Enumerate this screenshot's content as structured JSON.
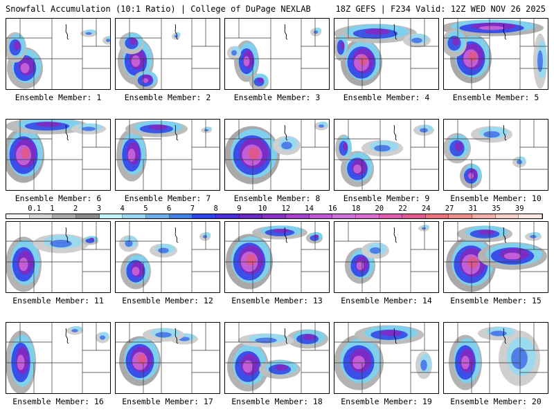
{
  "header": {
    "title_left": "Snowfall Accumulation (10:1 Ratio) | College of DuPage NEXLAB",
    "title_right": "18Z GEFS | F234 Valid: 12Z WED NOV 26 2025"
  },
  "colorbar": {
    "labels": [
      "0.1",
      "1",
      "2",
      "3",
      "4",
      "5",
      "6",
      "7",
      "8",
      "9",
      "10",
      "12",
      "14",
      "16",
      "18",
      "20",
      "22",
      "24",
      "27",
      "31",
      "35",
      "39"
    ],
    "colors": [
      "#f2f2f2",
      "#d2d2d2",
      "#a9a9a9",
      "#8a8a8a",
      "#bff4f7",
      "#96d5f0",
      "#6aaee8",
      "#3f7fe6",
      "#2b45e8",
      "#4a2fd6",
      "#6c28c4",
      "#8b2fc8",
      "#a63fd0",
      "#bd57d6",
      "#cf6fda",
      "#d86ad2",
      "#dd5aae",
      "#e1578e",
      "#e8707a",
      "#eb8e88",
      "#f0aea7",
      "#f6cec7",
      "#fae6e2"
    ]
  },
  "members": [
    {
      "label": "Ensemble Member: 1",
      "blobs": [
        [
          28,
          70,
          26,
          30,
          3
        ],
        [
          14,
          40,
          16,
          22,
          2
        ],
        [
          120,
          20,
          12,
          5,
          1
        ],
        [
          148,
          30,
          8,
          6,
          1
        ]
      ]
    },
    {
      "label": "Ensemble Member: 2",
      "blobs": [
        [
          30,
          60,
          26,
          34,
          3
        ],
        [
          44,
          88,
          18,
          14,
          3
        ],
        [
          24,
          34,
          18,
          16,
          2
        ],
        [
          88,
          24,
          6,
          5,
          1
        ]
      ]
    },
    {
      "label": "Ensemble Member: 3",
      "blobs": [
        [
          32,
          60,
          18,
          30,
          3
        ],
        [
          50,
          90,
          14,
          12,
          2
        ],
        [
          14,
          48,
          10,
          10,
          1
        ],
        [
          132,
          18,
          8,
          6,
          1
        ]
      ]
    },
    {
      "label": "Ensemble Member: 4",
      "blobs": [
        [
          40,
          62,
          30,
          34,
          4
        ],
        [
          60,
          20,
          60,
          14,
          2
        ],
        [
          120,
          30,
          20,
          10,
          1
        ],
        [
          10,
          40,
          10,
          20,
          2
        ]
      ]
    },
    {
      "label": "Ensemble Member: 5",
      "blobs": [
        [
          40,
          56,
          30,
          36,
          4
        ],
        [
          70,
          12,
          75,
          12,
          3
        ],
        [
          16,
          34,
          18,
          20,
          2
        ],
        [
          140,
          60,
          10,
          40,
          1
        ]
      ]
    },
    {
      "label": "Ensemble Member: 6",
      "blobs": [
        [
          26,
          50,
          30,
          40,
          4
        ],
        [
          60,
          8,
          60,
          12,
          2
        ],
        [
          120,
          12,
          25,
          8,
          1
        ]
      ]
    },
    {
      "label": "Ensemble Member: 7",
      "blobs": [
        [
          24,
          50,
          22,
          38,
          3
        ],
        [
          60,
          12,
          45,
          12,
          2
        ],
        [
          132,
          14,
          8,
          4,
          1
        ]
      ]
    },
    {
      "label": "Ensemble Member: 8",
      "blobs": [
        [
          40,
          50,
          40,
          42,
          4
        ],
        [
          90,
          36,
          20,
          14,
          1
        ],
        [
          140,
          8,
          10,
          6,
          1
        ]
      ]
    },
    {
      "label": "Ensemble Member: 9",
      "blobs": [
        [
          34,
          70,
          24,
          26,
          3
        ],
        [
          14,
          40,
          12,
          20,
          2
        ],
        [
          70,
          40,
          30,
          12,
          1
        ],
        [
          130,
          14,
          15,
          8,
          1
        ]
      ]
    },
    {
      "label": "Ensemble Member: 10",
      "blobs": [
        [
          20,
          40,
          20,
          22,
          2
        ],
        [
          40,
          80,
          16,
          18,
          3
        ],
        [
          70,
          20,
          30,
          12,
          1
        ],
        [
          110,
          60,
          10,
          8,
          1
        ]
      ]
    },
    {
      "label": "Ensemble Member: 11",
      "blobs": [
        [
          26,
          60,
          26,
          40,
          3
        ],
        [
          80,
          30,
          40,
          14,
          1
        ],
        [
          122,
          26,
          12,
          6,
          2
        ]
      ]
    },
    {
      "label": "Ensemble Member: 12",
      "blobs": [
        [
          30,
          70,
          22,
          26,
          3
        ],
        [
          20,
          30,
          14,
          12,
          1
        ],
        [
          70,
          40,
          20,
          10,
          1
        ],
        [
          130,
          20,
          8,
          6,
          1
        ]
      ]
    },
    {
      "label": "Ensemble Member: 13",
      "blobs": [
        [
          36,
          56,
          34,
          40,
          4
        ],
        [
          80,
          14,
          40,
          10,
          2
        ],
        [
          130,
          22,
          12,
          8,
          2
        ]
      ]
    },
    {
      "label": "Ensemble Member: 14",
      "blobs": [
        [
          38,
          62,
          22,
          26,
          3
        ],
        [
          60,
          40,
          20,
          12,
          1
        ],
        [
          130,
          8,
          8,
          4,
          1
        ]
      ]
    },
    {
      "label": "Ensemble Member: 15",
      "blobs": [
        [
          40,
          60,
          36,
          40,
          4
        ],
        [
          100,
          48,
          50,
          20,
          3
        ],
        [
          60,
          16,
          40,
          12,
          2
        ],
        [
          130,
          20,
          12,
          6,
          1
        ]
      ]
    },
    {
      "label": "Ensemble Member: 16",
      "blobs": [
        [
          22,
          56,
          22,
          46,
          3
        ],
        [
          140,
          20,
          10,
          8,
          1
        ],
        [
          100,
          10,
          12,
          6,
          1
        ]
      ]
    },
    {
      "label": "Ensemble Member: 17",
      "blobs": [
        [
          36,
          54,
          30,
          36,
          4
        ],
        [
          100,
          22,
          20,
          8,
          1
        ],
        [
          70,
          16,
          30,
          10,
          1
        ]
      ]
    },
    {
      "label": "Ensemble Member: 18",
      "blobs": [
        [
          34,
          62,
          30,
          36,
          3
        ],
        [
          80,
          66,
          30,
          14,
          2
        ],
        [
          120,
          22,
          30,
          14,
          2
        ],
        [
          60,
          24,
          40,
          10,
          1
        ]
      ]
    },
    {
      "label": "Ensemble Member: 19",
      "blobs": [
        [
          36,
          56,
          36,
          40,
          3
        ],
        [
          80,
          16,
          50,
          14,
          2
        ],
        [
          130,
          60,
          12,
          20,
          1
        ]
      ]
    },
    {
      "label": "Ensemble Member: 20",
      "blobs": [
        [
          32,
          56,
          24,
          40,
          3
        ],
        [
          110,
          50,
          30,
          40,
          1
        ],
        [
          80,
          14,
          30,
          10,
          1
        ]
      ]
    }
  ]
}
